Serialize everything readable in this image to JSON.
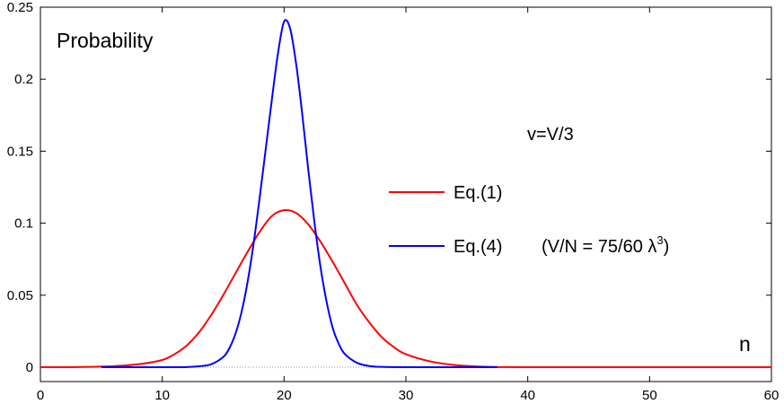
{
  "chart_data": {
    "type": "line",
    "ylabel": "Probability",
    "xlabel": "n",
    "annotation": "v=V/3",
    "xlim": [
      0,
      60
    ],
    "ylim": [
      0,
      0.25
    ],
    "x_ticks": [
      0,
      10,
      20,
      30,
      40,
      50,
      60
    ],
    "y_ticks": [
      0,
      0.05,
      0.1,
      0.15,
      0.2,
      0.25
    ],
    "y_tick_labels": [
      "0",
      "0.05",
      "0.1",
      "0.15",
      "0.2",
      "0.25"
    ],
    "grid": false,
    "legend_position": "center-right",
    "series": [
      {
        "name": "Eq.(1)",
        "legend_label": "Eq.(1)",
        "color": "#ff0000",
        "x": [
          0,
          2,
          4,
          6,
          8,
          10,
          11,
          12,
          13,
          14,
          15,
          16,
          17,
          18,
          19,
          20,
          21,
          22,
          23,
          24,
          25,
          26,
          27,
          28,
          29,
          30,
          32,
          34,
          36,
          38,
          40,
          45,
          50,
          55,
          60
        ],
        "y": [
          0,
          0,
          0.0002,
          0.0007,
          0.002,
          0.005,
          0.009,
          0.015,
          0.024,
          0.036,
          0.05,
          0.065,
          0.08,
          0.094,
          0.105,
          0.109,
          0.107,
          0.099,
          0.087,
          0.073,
          0.058,
          0.043,
          0.031,
          0.021,
          0.014,
          0.009,
          0.004,
          0.0015,
          0.0005,
          0.0001,
          0,
          0,
          0,
          0,
          0
        ]
      },
      {
        "name": "Eq.(4)",
        "legend_label": "Eq.(4)",
        "legend_note": "(V/N = 75/60 λ",
        "legend_note_sup": "3",
        "legend_note_end": ")",
        "color": "#0000ff",
        "x": [
          5,
          8,
          10,
          12,
          13,
          14,
          15,
          15.5,
          16,
          16.5,
          17,
          17.5,
          18,
          18.5,
          19,
          19.5,
          20,
          20.5,
          21,
          21.5,
          22,
          22.5,
          23,
          23.5,
          24,
          24.5,
          25,
          26,
          27,
          28,
          30,
          33,
          37.5
        ],
        "y": [
          0,
          0,
          0,
          0.0001,
          0.0006,
          0.002,
          0.007,
          0.013,
          0.023,
          0.038,
          0.059,
          0.086,
          0.118,
          0.152,
          0.186,
          0.218,
          0.24,
          0.235,
          0.21,
          0.175,
          0.136,
          0.1,
          0.069,
          0.045,
          0.027,
          0.016,
          0.009,
          0.003,
          0.0008,
          0.0002,
          0,
          0,
          0
        ]
      }
    ]
  }
}
